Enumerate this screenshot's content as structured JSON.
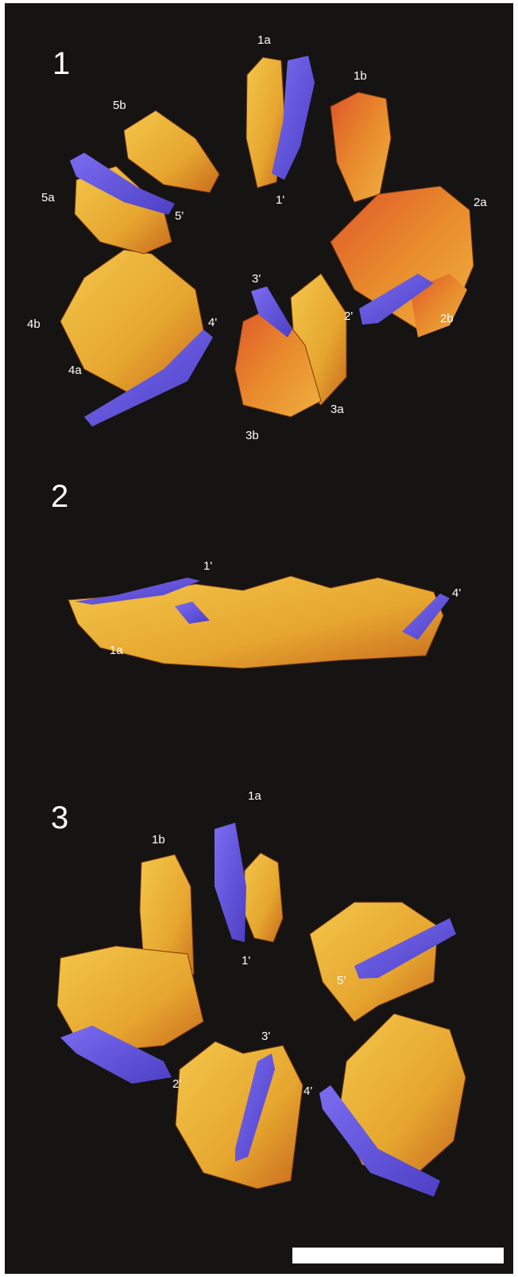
{
  "panels": [
    {
      "number": "1",
      "labels": [
        "1a",
        "1b",
        "1'",
        "2a",
        "2b",
        "2'",
        "3'",
        "3a",
        "3b",
        "4'",
        "4a",
        "4b",
        "5a",
        "5b",
        "5'"
      ]
    },
    {
      "number": "2",
      "labels": [
        "1'",
        "1a",
        "4'"
      ]
    },
    {
      "number": "3",
      "labels": [
        "1a",
        "1b",
        "1'",
        "5'",
        "2'",
        "3'",
        "4'"
      ]
    }
  ],
  "colors": {
    "background": "#161313",
    "specimen": "#e8b23a",
    "specimen_shadow": "#c96a1e",
    "highlight": "#6a5ce0",
    "scale_bar": "#ffffff"
  }
}
